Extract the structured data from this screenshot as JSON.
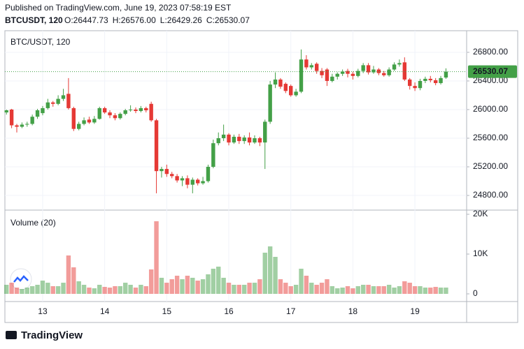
{
  "header": {
    "published": "Published on TradingView.com, June 19, 2023 07:58:19 EST",
    "symbol": "BTCUSDT, 120",
    "ohlc": [
      "O:26447.73",
      "H:26576.00",
      "L:26429.26",
      "C:26530.07"
    ]
  },
  "chart_data": [
    {
      "type": "candlestick",
      "title": "BTC/USDT, 120",
      "up_color": "#43a047",
      "down_color": "#e53935",
      "open": [
        25960,
        26000,
        25780,
        25760,
        25790,
        25800,
        25900,
        25950,
        26020,
        26100,
        26080,
        26150,
        26220,
        26020,
        25730,
        25800,
        25860,
        25820,
        25870,
        26020,
        25960,
        25920,
        25880,
        25940,
        25990,
        26000,
        25980,
        26020,
        26080,
        25850,
        25140,
        25170,
        25100,
        25070,
        25010,
        25040,
        24950,
        25020,
        24970,
        25000,
        25200,
        25530,
        25600,
        25650,
        25540,
        25620,
        25560,
        25610,
        25540,
        25600,
        25540,
        25830,
        26350,
        26420,
        26360,
        26330,
        26200,
        26250,
        26700,
        26590,
        26640,
        26540,
        26560,
        26400,
        26460,
        26500,
        26540,
        26500,
        26470,
        26540,
        26620,
        26520,
        26560,
        26510,
        26480,
        26560,
        26630,
        26660,
        26420,
        26330,
        26300,
        26400,
        26430,
        26410,
        26370,
        26447.73
      ],
      "high": [
        26000,
        26010,
        25800,
        25820,
        25830,
        25930,
        26010,
        26050,
        26150,
        26120,
        26200,
        26290,
        26440,
        26040,
        25830,
        25890,
        25900,
        25910,
        26040,
        26040,
        25990,
        25950,
        25960,
        26010,
        26060,
        26030,
        26050,
        26040,
        26110,
        25870,
        25200,
        25230,
        25130,
        25100,
        25070,
        25080,
        25050,
        25040,
        25060,
        25230,
        25580,
        25680,
        25790,
        25670,
        25650,
        25660,
        25640,
        25680,
        25640,
        25620,
        25860,
        26400,
        26520,
        26440,
        26380,
        26350,
        26290,
        26840,
        26760,
        26650,
        26660,
        26580,
        26580,
        26500,
        26520,
        26560,
        26570,
        26530,
        26570,
        26650,
        26650,
        26610,
        26580,
        26540,
        26590,
        26660,
        26700,
        26730,
        26440,
        26380,
        26430,
        26460,
        26470,
        26440,
        26470,
        26576
      ],
      "low": [
        25930,
        25740,
        25680,
        25740,
        25760,
        25780,
        25870,
        25920,
        26000,
        26040,
        26060,
        26120,
        26000,
        25700,
        25710,
        25780,
        25800,
        25800,
        25860,
        25940,
        25880,
        25850,
        25860,
        25920,
        25970,
        25950,
        25960,
        25960,
        25830,
        24830,
        25050,
        25060,
        25040,
        24980,
        24930,
        24900,
        24830,
        24940,
        24950,
        24980,
        25180,
        25500,
        25560,
        25500,
        25520,
        25520,
        25520,
        25500,
        25520,
        25490,
        25170,
        25800,
        26300,
        26290,
        26230,
        26180,
        26180,
        26230,
        26560,
        26560,
        26500,
        26440,
        26330,
        26380,
        26420,
        26470,
        26450,
        26420,
        26450,
        26510,
        26490,
        26500,
        26480,
        26460,
        26460,
        26540,
        26600,
        26400,
        26280,
        26260,
        26270,
        26370,
        26380,
        26340,
        26350,
        26429.26
      ],
      "close": [
        25990,
        25780,
        25760,
        25790,
        25800,
        25900,
        25990,
        26020,
        26100,
        26080,
        26150,
        26200,
        26020,
        25730,
        25800,
        25850,
        25820,
        25870,
        26020,
        25960,
        25920,
        25880,
        25940,
        25990,
        26000,
        25980,
        26020,
        25990,
        25850,
        25140,
        25170,
        25100,
        25070,
        25010,
        25040,
        24950,
        25020,
        24970,
        25000,
        25200,
        25530,
        25600,
        25650,
        25540,
        25620,
        25560,
        25610,
        25540,
        25600,
        25540,
        25830,
        26350,
        26420,
        26320,
        26260,
        26200,
        26250,
        26700,
        26590,
        26620,
        26540,
        26480,
        26400,
        26460,
        26500,
        26530,
        26500,
        26470,
        26540,
        26620,
        26520,
        26560,
        26510,
        26480,
        26560,
        26630,
        26650,
        26420,
        26330,
        26300,
        26400,
        26430,
        26410,
        26370,
        26440,
        26530.07
      ],
      "xlim": [
        -0.3,
        89
      ],
      "xticks": [
        {
          "value": 7,
          "label": "13"
        },
        {
          "value": 19,
          "label": "14"
        },
        {
          "value": 31,
          "label": "15"
        },
        {
          "value": 43,
          "label": "16"
        },
        {
          "value": 55,
          "label": "17"
        },
        {
          "value": 67,
          "label": "18"
        },
        {
          "value": 79,
          "label": "19"
        }
      ],
      "ylim": [
        24605,
        27102
      ],
      "yticks": [
        {
          "value": 24800,
          "label": "24800.00"
        },
        {
          "value": 25200,
          "label": "25200.00"
        },
        {
          "value": 25600,
          "label": "25600.00"
        },
        {
          "value": 26000,
          "label": "26000.00"
        },
        {
          "value": 26400,
          "label": "26400.00"
        },
        {
          "value": 26800,
          "label": "26800.00"
        }
      ],
      "last_price": {
        "value": 26530.07,
        "label": "26530.07"
      }
    },
    {
      "type": "bar",
      "title": "Volume (20)",
      "values": [
        2280,
        2800,
        1580,
        1230,
        1580,
        1930,
        2280,
        3330,
        2800,
        1930,
        1930,
        2800,
        9650,
        6670,
        3160,
        2280,
        1580,
        1400,
        2280,
        1750,
        1580,
        1930,
        1930,
        2800,
        2280,
        1580,
        2280,
        1930,
        6140,
        18250,
        4040,
        2800,
        3680,
        4560,
        3680,
        4560,
        4040,
        3330,
        3680,
        4910,
        6320,
        6840,
        4040,
        2800,
        2280,
        2280,
        2280,
        2800,
        2800,
        3680,
        10350,
        11930,
        9300,
        3680,
        2800,
        1930,
        2280,
        6320,
        4560,
        2800,
        2280,
        2800,
        3680,
        1930,
        1400,
        1580,
        1930,
        1400,
        1930,
        2280,
        2280,
        1930,
        1930,
        1930,
        2280,
        1580,
        1930,
        3160,
        2800,
        1930,
        1930,
        1580,
        1580,
        1750,
        1580,
        1580
      ],
      "xlim": [
        -0.3,
        89
      ],
      "ylim": [
        -1930,
        20877
      ],
      "yticks": [
        0,
        {
          "value": 10000,
          "label": "10K"
        },
        {
          "value": 20000,
          "label": "20K"
        }
      ]
    }
  ],
  "footer": {
    "brand": "TradingView"
  }
}
